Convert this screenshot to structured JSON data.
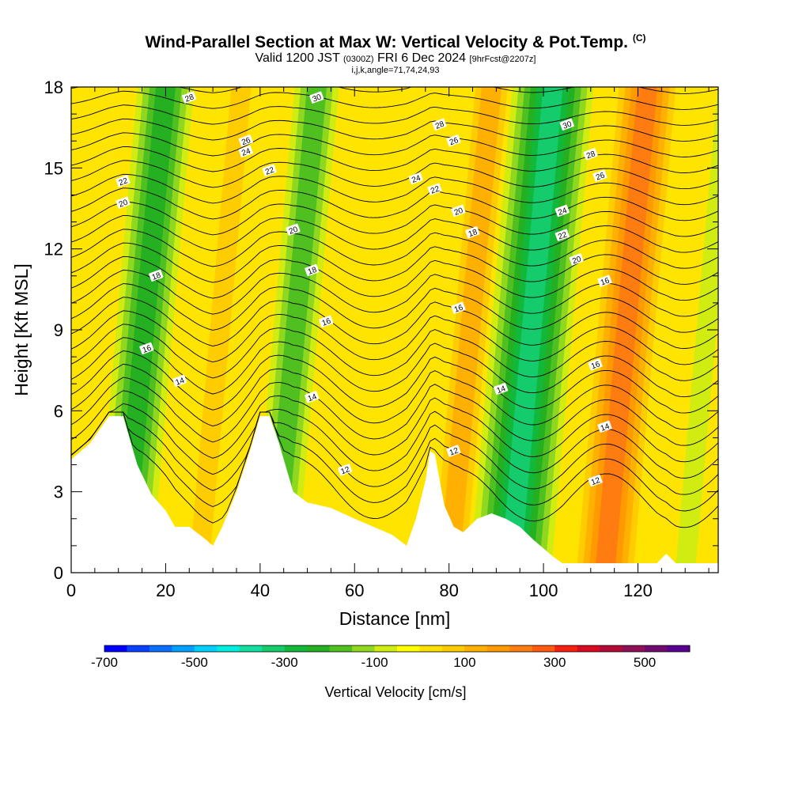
{
  "header": {
    "title": "Wind-Parallel Section at Max W: Vertical Velocity & Pot.Temp.",
    "title_mark": "(C)",
    "valid_prefix": "Valid 1200 JST",
    "valid_utc": "(0300Z)",
    "valid_date": "FRI 6 Dec 2024",
    "forecast_tag": "[9hrFcst@2207z]",
    "indices": "i,j,k,angle=71,74,24,93"
  },
  "colorbar": {
    "label": "Vertical Velocity [cm/s]",
    "tick_labels": [
      "-700",
      "-500",
      "-300",
      "-100",
      "100",
      "300",
      "500"
    ],
    "tick_values": [
      -700,
      -500,
      -300,
      -100,
      100,
      300,
      500
    ],
    "range": [
      -700,
      600
    ],
    "colors": [
      "#0000ff",
      "#0a40ff",
      "#0a6fff",
      "#00a0ff",
      "#00d0ff",
      "#00eedd",
      "#10dfa0",
      "#14cc6c",
      "#12b83a",
      "#24b020",
      "#50c020",
      "#90d820",
      "#d0ec10",
      "#ffff00",
      "#ffe000",
      "#ffcc00",
      "#ffb000",
      "#ff9a00",
      "#ff7d10",
      "#ff5a10",
      "#f82010",
      "#d80a20",
      "#b40a38",
      "#901058",
      "#700a70",
      "#5a0090"
    ]
  },
  "chart_data": {
    "type": "heatmap",
    "xlabel": "Distance [nm]",
    "ylabel": "Height [Kft MSL]",
    "xlim": [
      0,
      137
    ],
    "ylim": [
      0,
      18
    ],
    "x_ticks": [
      0,
      20,
      40,
      60,
      80,
      100,
      120
    ],
    "y_ticks": [
      0,
      3,
      6,
      9,
      12,
      15,
      18
    ],
    "x_tick_labels": [
      "0",
      "20",
      "40",
      "60",
      "80",
      "100",
      "120"
    ],
    "y_tick_labels": [
      "0",
      "3",
      "6",
      "9",
      "12",
      "15",
      "18"
    ],
    "fill_variable": "Vertical Velocity [cm/s]",
    "contour_variable": "Potential temperature",
    "terrain_profile": {
      "x": [
        0,
        4,
        8,
        11,
        14,
        17,
        20,
        22,
        25,
        28,
        30,
        32,
        35,
        38,
        40,
        42,
        44,
        47,
        50,
        55,
        60,
        64,
        68,
        71,
        73,
        75,
        76,
        77,
        79,
        81,
        83,
        86,
        89,
        92,
        95,
        98,
        100,
        102,
        104,
        108,
        112,
        118,
        124,
        126,
        128,
        132,
        137
      ],
      "height_kft": [
        4.2,
        4.8,
        5.8,
        5.8,
        4.0,
        2.9,
        2.3,
        1.7,
        1.7,
        1.3,
        1.0,
        1.7,
        3.0,
        4.6,
        5.8,
        5.8,
        4.8,
        3.0,
        2.6,
        2.4,
        2.0,
        1.7,
        1.4,
        1.0,
        2.0,
        3.4,
        4.5,
        4.4,
        2.5,
        1.7,
        1.5,
        2.0,
        2.2,
        2.0,
        1.7,
        1.2,
        0.9,
        0.6,
        0.35,
        0.35,
        0.35,
        0.35,
        0.35,
        0.7,
        0.35,
        0.35,
        0.35
      ]
    },
    "w_bands": [
      {
        "x": 11,
        "w": -220,
        "note": "downdraft column"
      },
      {
        "x": 43,
        "w": -200,
        "note": "downdraft column"
      },
      {
        "x": 93,
        "w": -320,
        "note": "downdraft column"
      },
      {
        "x": 130,
        "w": -90,
        "note": "downdraft column"
      },
      {
        "x": 27,
        "w": 80
      },
      {
        "x": 80,
        "w": 160
      },
      {
        "x": 113,
        "w": 240
      }
    ],
    "contour_labels": [
      {
        "x": 25,
        "y": 17.6,
        "text": "28"
      },
      {
        "x": 52,
        "y": 17.6,
        "text": "30"
      },
      {
        "x": 78,
        "y": 16.6,
        "text": "28"
      },
      {
        "x": 81,
        "y": 16.0,
        "text": "26"
      },
      {
        "x": 105,
        "y": 16.6,
        "text": "30"
      },
      {
        "x": 110,
        "y": 15.5,
        "text": "28"
      },
      {
        "x": 37,
        "y": 16.0,
        "text": "26"
      },
      {
        "x": 112,
        "y": 14.7,
        "text": "26"
      },
      {
        "x": 37,
        "y": 15.6,
        "text": "24"
      },
      {
        "x": 42,
        "y": 14.9,
        "text": "22"
      },
      {
        "x": 73,
        "y": 14.6,
        "text": "24"
      },
      {
        "x": 77,
        "y": 14.2,
        "text": "22"
      },
      {
        "x": 104,
        "y": 13.4,
        "text": "24"
      },
      {
        "x": 11,
        "y": 14.5,
        "text": "22"
      },
      {
        "x": 11,
        "y": 13.7,
        "text": "20"
      },
      {
        "x": 82,
        "y": 13.4,
        "text": "20"
      },
      {
        "x": 104,
        "y": 12.5,
        "text": "22"
      },
      {
        "x": 47,
        "y": 12.7,
        "text": "20"
      },
      {
        "x": 85,
        "y": 12.6,
        "text": "18"
      },
      {
        "x": 107,
        "y": 11.6,
        "text": "20"
      },
      {
        "x": 18,
        "y": 11.0,
        "text": "18"
      },
      {
        "x": 51,
        "y": 11.2,
        "text": "18"
      },
      {
        "x": 113,
        "y": 10.8,
        "text": "16"
      },
      {
        "x": 82,
        "y": 9.8,
        "text": "16"
      },
      {
        "x": 54,
        "y": 9.3,
        "text": "16"
      },
      {
        "x": 16,
        "y": 8.3,
        "text": "16"
      },
      {
        "x": 111,
        "y": 7.7,
        "text": "16"
      },
      {
        "x": 23,
        "y": 7.1,
        "text": "14"
      },
      {
        "x": 91,
        "y": 6.8,
        "text": "14"
      },
      {
        "x": 51,
        "y": 6.5,
        "text": "14"
      },
      {
        "x": 113,
        "y": 5.4,
        "text": "14"
      },
      {
        "x": 58,
        "y": 3.8,
        "text": "12"
      },
      {
        "x": 81,
        "y": 4.5,
        "text": "12"
      },
      {
        "x": 111,
        "y": 3.4,
        "text": "12"
      }
    ]
  }
}
